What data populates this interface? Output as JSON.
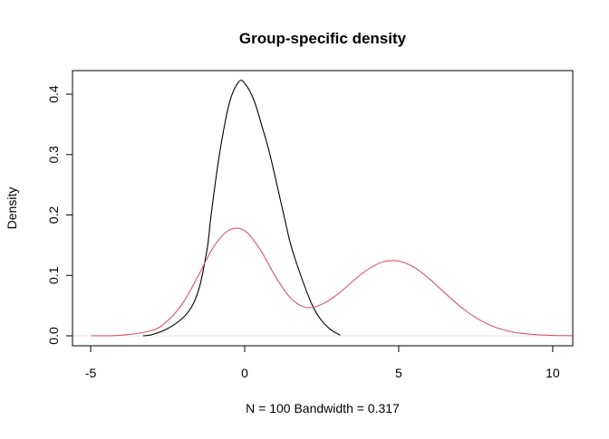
{
  "chart_data": {
    "type": "line",
    "title": "Group-specific density",
    "xlabel": "N = 100   Bandwidth = 0.317",
    "ylabel": "Density",
    "xlim": [
      -5.59,
      10.65
    ],
    "ylim": [
      -0.0165,
      0.439
    ],
    "xticks": [
      -5,
      0,
      5,
      10
    ],
    "yticks": [
      0.0,
      0.1,
      0.2,
      0.3,
      0.4
    ],
    "xtick_labels": [
      "-5",
      "0",
      "5",
      "10"
    ],
    "ytick_labels": [
      "0.0",
      "0.1",
      "0.2",
      "0.3",
      "0.4"
    ],
    "grid": false,
    "zero_line_color": "#e6e6e6",
    "series": [
      {
        "color": "#000000",
        "x": [
          -3.3,
          -3,
          -2.5,
          -2,
          -1.7,
          -1.5,
          -1.38,
          -1.2,
          -1.09,
          -0.82,
          -0.5,
          -0.2,
          0,
          0.3,
          0.6,
          0.82,
          1.27,
          1.5,
          1.82,
          2.2,
          2.5,
          2.8,
          3.1
        ],
        "y": [
          0,
          0.002,
          0.012,
          0.03,
          0.05,
          0.075,
          0.1,
          0.15,
          0.2,
          0.3,
          0.385,
          0.42,
          0.418,
          0.39,
          0.34,
          0.3,
          0.2,
          0.15,
          0.1,
          0.05,
          0.025,
          0.01,
          0.001
        ]
      },
      {
        "color": "#DF536B",
        "x": [
          -5,
          -4,
          -3,
          -2.5,
          -2,
          -1.5,
          -1,
          -0.5,
          0,
          0.5,
          1,
          1.5,
          2,
          2.5,
          3,
          3.5,
          4,
          4.5,
          5,
          5.5,
          6,
          6.5,
          7,
          7.5,
          8,
          8.5,
          9,
          9.5,
          10,
          10.65
        ],
        "y": [
          0,
          0.001,
          0.009,
          0.025,
          0.055,
          0.1,
          0.148,
          0.175,
          0.174,
          0.143,
          0.098,
          0.062,
          0.047,
          0.052,
          0.068,
          0.09,
          0.11,
          0.1225,
          0.1237,
          0.1133,
          0.0941,
          0.0709,
          0.0485,
          0.03,
          0.0169,
          0.0086,
          0.004,
          0.0017,
          0.0006,
          0.0002
        ]
      }
    ]
  }
}
